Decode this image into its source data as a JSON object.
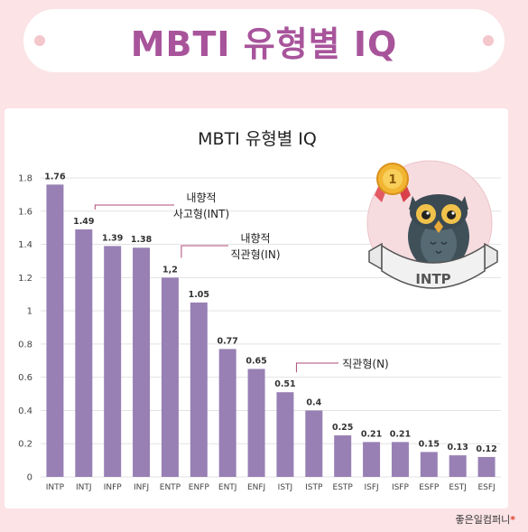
{
  "banner": {
    "title": "MBTI 유형별 IQ"
  },
  "chart_data": {
    "type": "bar",
    "title": "MBTI 유형별 IQ",
    "categories": [
      "INTP",
      "INTJ",
      "INFP",
      "INFJ",
      "ENTP",
      "ENFP",
      "ENTJ",
      "ENFJ",
      "ISTJ",
      "ISTP",
      "ESTP",
      "ISFJ",
      "ISFP",
      "ESFP",
      "ESTJ",
      "ESFJ"
    ],
    "values": [
      1.76,
      1.49,
      1.39,
      1.38,
      1.2,
      1.05,
      0.77,
      0.65,
      0.51,
      0.4,
      0.25,
      0.21,
      0.21,
      0.15,
      0.13,
      0.12
    ],
    "value_labels": [
      "1.76",
      "1.49",
      "1.39",
      "1.38",
      "1,2",
      "1.05",
      "0.77",
      "0.65",
      "0.51",
      "0.4",
      "0.25",
      "0.21",
      "0.21",
      "0.15",
      "0.13",
      "0.12"
    ],
    "ylim": [
      0,
      1.8
    ],
    "yticks": [
      "0",
      "0.2",
      "0.4",
      "0.6",
      "0.8",
      "1",
      "1.2",
      "1.4",
      "1.6",
      "1.8"
    ],
    "grid": true,
    "bar_color": "#9880b4",
    "annotations": [
      {
        "lines": [
          "내향적",
          "사고형(INT)"
        ],
        "from_category": 1
      },
      {
        "lines": [
          "내향적",
          "직관형(IN)"
        ],
        "from_category": 4
      },
      {
        "lines": [
          "직관형(N)"
        ],
        "from_category": 8
      }
    ],
    "badge": {
      "rank": "1",
      "label": "INTP"
    }
  },
  "footer": {
    "brand": "좋은일컴퍼니",
    "mark": "*"
  }
}
